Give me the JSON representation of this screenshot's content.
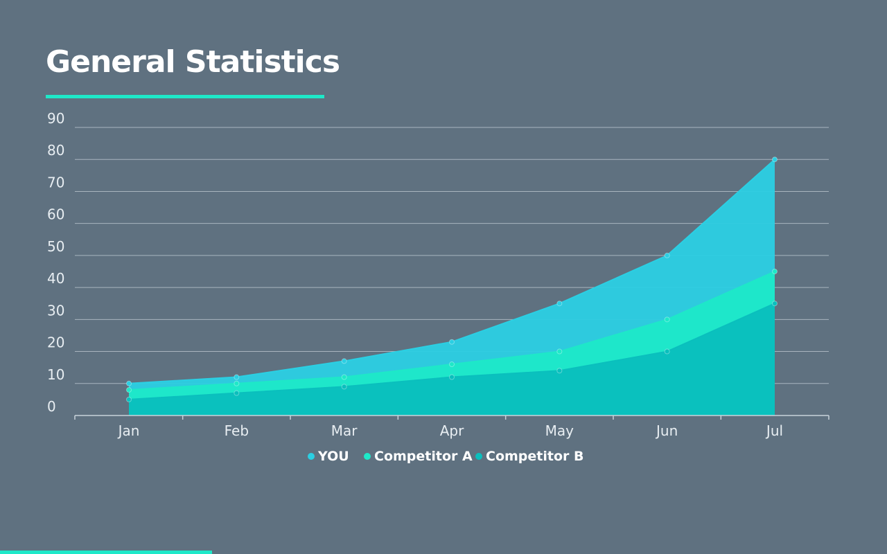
{
  "header": {
    "title": "General Statistics"
  },
  "colors": {
    "background": "#5f7180",
    "accent": "#1ee8c8",
    "grid": "#c9d3da"
  },
  "chart_data": {
    "type": "area",
    "title": "General Statistics",
    "xlabel": "",
    "ylabel": "",
    "categories": [
      "Jan",
      "Feb",
      "Mar",
      "Apr",
      "May",
      "Jun",
      "Jul"
    ],
    "ylim": [
      0,
      90
    ],
    "yticks": [
      0,
      10,
      20,
      30,
      40,
      50,
      60,
      70,
      80,
      90
    ],
    "grid": true,
    "legend_position": "bottom-center",
    "series": [
      {
        "name": "YOU",
        "color": "#2bcfe3",
        "values": [
          10,
          12,
          17,
          23,
          35,
          50,
          80
        ]
      },
      {
        "name": "Competitor A",
        "color": "#1ee8c8",
        "values": [
          8,
          10,
          12,
          16,
          20,
          30,
          45
        ]
      },
      {
        "name": "Competitor B",
        "color": "#0abfbd",
        "values": [
          5,
          7,
          9,
          12,
          14,
          20,
          35
        ]
      }
    ]
  }
}
